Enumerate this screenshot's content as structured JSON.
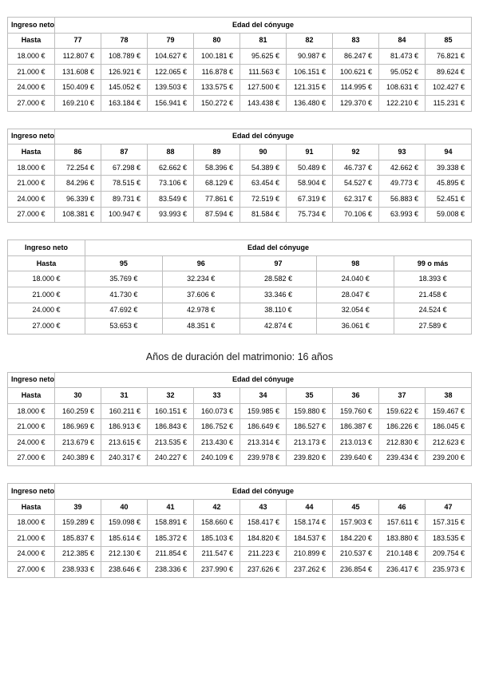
{
  "heading": "Años de duración del matrimonio: 16 años",
  "labels": {
    "income": "Ingreso neto",
    "spouse_age": "Edad del cónyuge",
    "up_to": "Hasta"
  },
  "tables": [
    {
      "ages": [
        "77",
        "78",
        "79",
        "80",
        "81",
        "82",
        "83",
        "84",
        "85"
      ],
      "rows": [
        {
          "income": "18.000 €",
          "values": [
            "112.807 €",
            "108.789 €",
            "104.627 €",
            "100.181 €",
            "95.625 €",
            "90.987 €",
            "86.247 €",
            "81.473 €",
            "76.821 €"
          ]
        },
        {
          "income": "21.000 €",
          "values": [
            "131.608 €",
            "126.921 €",
            "122.065 €",
            "116.878 €",
            "111.563 €",
            "106.151 €",
            "100.621 €",
            "95.052 €",
            "89.624 €"
          ]
        },
        {
          "income": "24.000 €",
          "values": [
            "150.409 €",
            "145.052 €",
            "139.503 €",
            "133.575 €",
            "127.500 €",
            "121.315 €",
            "114.995 €",
            "108.631 €",
            "102.427 €"
          ]
        },
        {
          "income": "27.000 €",
          "values": [
            "169.210 €",
            "163.184 €",
            "156.941 €",
            "150.272 €",
            "143.438 €",
            "136.480 €",
            "129.370 €",
            "122.210 €",
            "115.231 €"
          ]
        }
      ]
    },
    {
      "ages": [
        "86",
        "87",
        "88",
        "89",
        "90",
        "91",
        "92",
        "93",
        "94"
      ],
      "rows": [
        {
          "income": "18.000 €",
          "values": [
            "72.254 €",
            "67.298 €",
            "62.662 €",
            "58.396 €",
            "54.389 €",
            "50.489 €",
            "46.737 €",
            "42.662 €",
            "39.338 €"
          ]
        },
        {
          "income": "21.000 €",
          "values": [
            "84.296 €",
            "78.515 €",
            "73.106 €",
            "68.129 €",
            "63.454 €",
            "58.904 €",
            "54.527 €",
            "49.773 €",
            "45.895 €"
          ]
        },
        {
          "income": "24.000 €",
          "values": [
            "96.339 €",
            "89.731 €",
            "83.549 €",
            "77.861 €",
            "72.519 €",
            "67.319 €",
            "62.317 €",
            "56.883 €",
            "52.451 €"
          ]
        },
        {
          "income": "27.000 €",
          "values": [
            "108.381 €",
            "100.947 €",
            "93.993 €",
            "87.594 €",
            "81.584 €",
            "75.734 €",
            "70.106 €",
            "63.993 €",
            "59.008 €"
          ]
        }
      ]
    },
    {
      "ages": [
        "95",
        "96",
        "97",
        "98",
        "99 o más"
      ],
      "rows": [
        {
          "income": "18.000 €",
          "values": [
            "35.769 €",
            "32.234 €",
            "28.582 €",
            "24.040 €",
            "18.393 €"
          ]
        },
        {
          "income": "21.000 €",
          "values": [
            "41.730 €",
            "37.606 €",
            "33.346 €",
            "28.047 €",
            "21.458 €"
          ]
        },
        {
          "income": "24.000 €",
          "values": [
            "47.692 €",
            "42.978 €",
            "38.110 €",
            "32.054 €",
            "24.524 €"
          ]
        },
        {
          "income": "27.000 €",
          "values": [
            "53.653 €",
            "48.351 €",
            "42.874 €",
            "36.061 €",
            "27.589 €"
          ]
        }
      ]
    },
    {
      "ages": [
        "30",
        "31",
        "32",
        "33",
        "34",
        "35",
        "36",
        "37",
        "38"
      ],
      "rows": [
        {
          "income": "18.000 €",
          "values": [
            "160.259 €",
            "160.211 €",
            "160.151 €",
            "160.073 €",
            "159.985 €",
            "159.880 €",
            "159.760 €",
            "159.622 €",
            "159.467 €"
          ]
        },
        {
          "income": "21.000 €",
          "values": [
            "186.969 €",
            "186.913 €",
            "186.843 €",
            "186.752 €",
            "186.649 €",
            "186.527 €",
            "186.387 €",
            "186.226 €",
            "186.045 €"
          ]
        },
        {
          "income": "24.000 €",
          "values": [
            "213.679 €",
            "213.615 €",
            "213.535 €",
            "213.430 €",
            "213.314 €",
            "213.173 €",
            "213.013 €",
            "212.830 €",
            "212.623 €"
          ]
        },
        {
          "income": "27.000 €",
          "values": [
            "240.389 €",
            "240.317 €",
            "240.227 €",
            "240.109 €",
            "239.978 €",
            "239.820 €",
            "239.640 €",
            "239.434 €",
            "239.200 €"
          ]
        }
      ]
    },
    {
      "ages": [
        "39",
        "40",
        "41",
        "42",
        "43",
        "44",
        "45",
        "46",
        "47"
      ],
      "rows": [
        {
          "income": "18.000 €",
          "values": [
            "159.289 €",
            "159.098 €",
            "158.891 €",
            "158.660 €",
            "158.417 €",
            "158.174 €",
            "157.903 €",
            "157.611 €",
            "157.315 €"
          ]
        },
        {
          "income": "21.000 €",
          "values": [
            "185.837 €",
            "185.614 €",
            "185.372 €",
            "185.103 €",
            "184.820 €",
            "184.537 €",
            "184.220 €",
            "183.880 €",
            "183.535 €"
          ]
        },
        {
          "income": "24.000 €",
          "values": [
            "212.385 €",
            "212.130 €",
            "211.854 €",
            "211.547 €",
            "211.223 €",
            "210.899 €",
            "210.537 €",
            "210.148 €",
            "209.754 €"
          ]
        },
        {
          "income": "27.000 €",
          "values": [
            "238.933 €",
            "238.646 €",
            "238.336 €",
            "237.990 €",
            "237.626 €",
            "237.262 €",
            "236.854 €",
            "236.417 €",
            "235.973 €"
          ]
        }
      ]
    }
  ]
}
